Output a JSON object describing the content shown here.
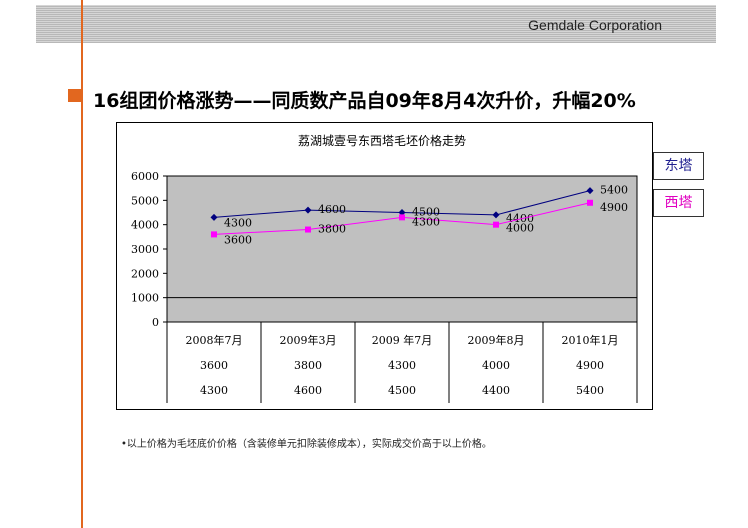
{
  "header": {
    "company": "Gemdale Corporation"
  },
  "slide": {
    "title": "16组团价格涨势——同质数产品自09年8月4次升价，升幅20%"
  },
  "chart_data": {
    "type": "line",
    "title": "荔湖城壹号东西塔毛坯价格走势",
    "categories": [
      "2008年7月",
      "2009年3月",
      "2009  年7月",
      "2009年8月",
      "2010年1月"
    ],
    "series": [
      {
        "name": "东塔",
        "values": [
          4300,
          4600,
          4500,
          4400,
          5400
        ],
        "color": "#00007f",
        "marker": "diamond"
      },
      {
        "name": "西塔",
        "values": [
          3600,
          3800,
          4300,
          4000,
          4900
        ],
        "color": "#ff00ff",
        "marker": "square"
      }
    ],
    "table_rows": [
      [
        "3600",
        "3800",
        "4300",
        "4000",
        "4900"
      ],
      [
        "4300",
        "4600",
        "4500",
        "4400",
        "5400"
      ]
    ],
    "yticks": [
      "0",
      "1000",
      "2000",
      "3000",
      "4000",
      "5000",
      "6000"
    ],
    "ylim": [
      0,
      6000
    ],
    "legend": "right",
    "plot_background": "#c0c0c0"
  },
  "legend_labels": {
    "east": "东塔",
    "west": "西塔"
  },
  "footnote": "•以上价格为毛坯底价价格（含装修单元扣除装修成本），实际成交价高于以上价格。"
}
